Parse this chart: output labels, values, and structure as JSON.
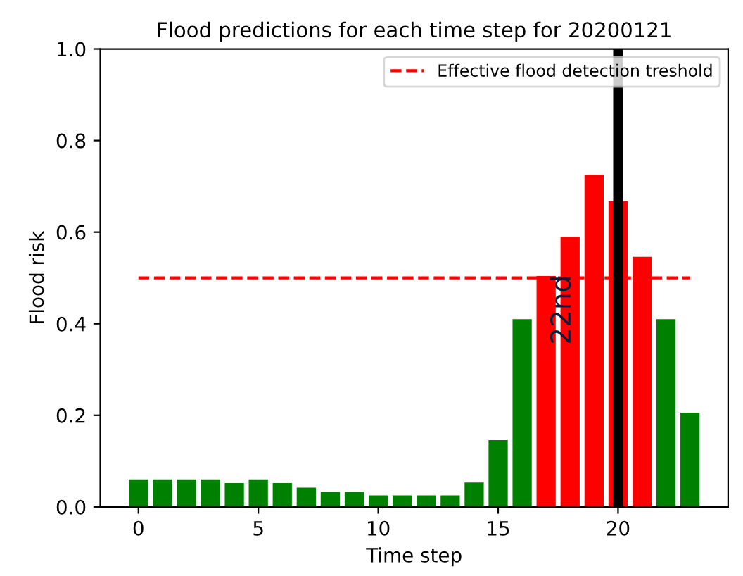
{
  "chart_data": {
    "type": "bar",
    "title": "Flood predictions for each time step for 20200121",
    "xlabel": "Time step",
    "ylabel": "Flood risk",
    "x": [
      0,
      1,
      2,
      3,
      4,
      5,
      6,
      7,
      8,
      9,
      10,
      11,
      12,
      13,
      14,
      15,
      16,
      17,
      18,
      19,
      20,
      21,
      22,
      23
    ],
    "series": [
      {
        "colors": [
          "#008000",
          "#008000",
          "#008000",
          "#008000",
          "#008000",
          "#008000",
          "#008000",
          "#008000",
          "#008000",
          "#008000",
          "#008000",
          "#008000",
          "#008000",
          "#008000",
          "#008000",
          "#008000",
          "#008000",
          "#ff0000",
          "#ff0000",
          "#ff0000",
          "#ff0000",
          "#ff0000",
          "#008000",
          "#008000"
        ],
        "values": [
          0.06,
          0.06,
          0.06,
          0.06,
          0.052,
          0.06,
          0.052,
          0.042,
          0.033,
          0.033,
          0.025,
          0.025,
          0.025,
          0.025,
          0.053,
          0.146,
          0.41,
          0.504,
          0.59,
          0.725,
          0.667,
          0.546,
          0.41,
          0.206
        ]
      },
      {
        "type": "line",
        "name": "Effective flood detection treshold",
        "color": "#ff0000",
        "line_style": "dashed",
        "x": [
          0,
          23
        ],
        "values": [
          0.5,
          0.5
        ]
      }
    ],
    "ref_lines": [
      {
        "axis": "x",
        "value": 20,
        "label": "22nd",
        "color": "#000000"
      }
    ],
    "xlim": [
      -1.59,
      24.59
    ],
    "ylim": [
      0,
      1.0
    ],
    "xticks": [
      0,
      5,
      10,
      15,
      20
    ],
    "yticks": [
      {
        "value": 0,
        "label": "0.0"
      },
      0.2,
      0.4,
      0.6,
      0.8,
      {
        "value": 1,
        "label": "1.0"
      }
    ],
    "grid": false,
    "legend": "top right"
  }
}
